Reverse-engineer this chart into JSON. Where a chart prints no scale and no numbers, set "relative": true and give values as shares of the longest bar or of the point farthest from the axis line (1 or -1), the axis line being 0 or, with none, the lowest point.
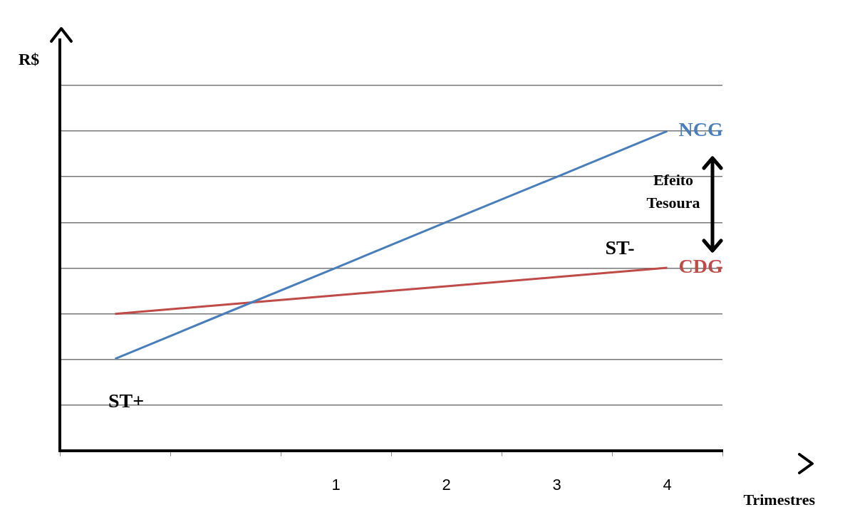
{
  "chart_data": {
    "type": "line",
    "relative": true,
    "xlabel": "Trimestres",
    "ylabel": "R$",
    "categories": [
      null,
      null,
      "1",
      "2",
      "3",
      "4"
    ],
    "series": [
      {
        "name": "NCG",
        "color": "#4a7ebb",
        "values": [
          0.287,
          0.43,
          0.572,
          0.715,
          0.857,
          1
        ]
      },
      {
        "name": "CDG",
        "color": "#be4b48",
        "values": [
          0.428,
          0.457,
          0.486,
          0.514,
          0.543,
          0.572
        ]
      }
    ],
    "annotations": [
      "ST+",
      "ST-",
      "Efeito Tesoura"
    ],
    "grid": "y",
    "legend": false,
    "marker": "none",
    "line_style": "solid"
  }
}
